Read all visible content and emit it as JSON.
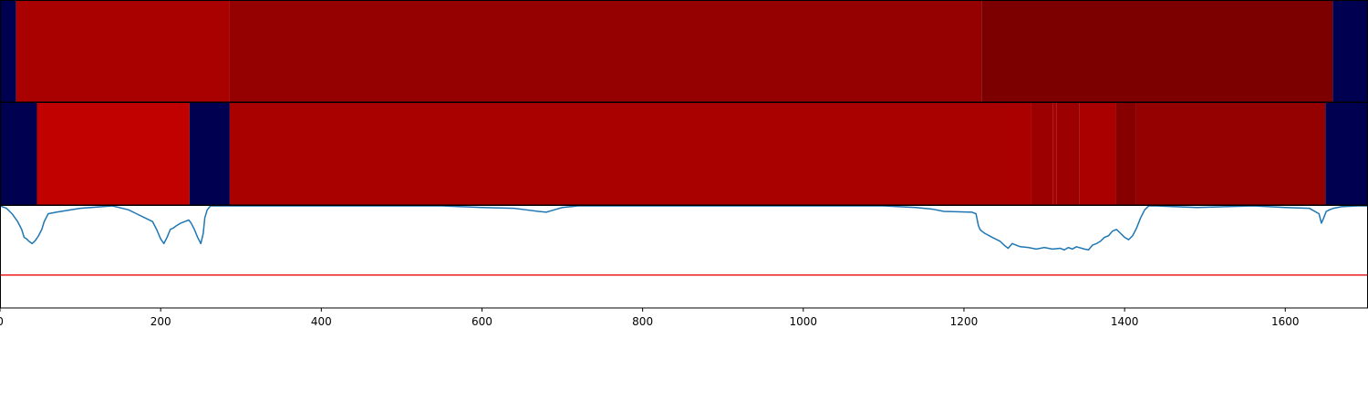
{
  "chart_data": [
    {
      "type": "heatmap",
      "panel": "top-band",
      "segments": [
        {
          "start": 0,
          "end": 20,
          "color": "#000050"
        },
        {
          "start": 20,
          "end": 286,
          "color": "#a90000"
        },
        {
          "start": 286,
          "end": 1222,
          "color": "#950000"
        },
        {
          "start": 1222,
          "end": 1659,
          "color": "#7d0000"
        },
        {
          "start": 1659,
          "end": 1703,
          "color": "#000050"
        }
      ]
    },
    {
      "type": "heatmap",
      "panel": "middle-band",
      "segments": [
        {
          "start": 0,
          "end": 46,
          "color": "#000050"
        },
        {
          "start": 46,
          "end": 236,
          "color": "#c10000"
        },
        {
          "start": 236,
          "end": 286,
          "color": "#000050"
        },
        {
          "start": 286,
          "end": 1250,
          "color": "#a90000"
        },
        {
          "start": 1250,
          "end": 1284,
          "color": "#aa0000"
        },
        {
          "start": 1284,
          "end": 1311,
          "color": "#9c0000"
        },
        {
          "start": 1311,
          "end": 1315,
          "color": "#a90000"
        },
        {
          "start": 1315,
          "end": 1344,
          "color": "#9c0000"
        },
        {
          "start": 1344,
          "end": 1389,
          "color": "#aa0000"
        },
        {
          "start": 1389,
          "end": 1414,
          "color": "#870000"
        },
        {
          "start": 1414,
          "end": 1650,
          "color": "#950000"
        },
        {
          "start": 1650,
          "end": 1703,
          "color": "#000050"
        }
      ]
    },
    {
      "type": "line",
      "panel": "bottom-line",
      "xlim": [
        0,
        1703
      ],
      "ylim": [
        -0.3,
        1.0
      ],
      "xticks": [
        0,
        200,
        400,
        600,
        800,
        1000,
        1200,
        1400,
        1600
      ],
      "xticklabels": [
        "0",
        "200",
        "400",
        "600",
        "800",
        "1000",
        "1200",
        "1400",
        "1600"
      ],
      "threshold": {
        "y": 0.12,
        "color": "#ee1c1c"
      },
      "series": [
        {
          "color": "#1f77b4",
          "x": [
            0,
            8,
            15,
            22,
            27,
            30,
            33,
            36,
            40,
            44,
            48,
            52,
            55,
            60,
            70,
            100,
            140,
            160,
            170,
            180,
            190,
            195,
            200,
            204,
            208,
            212,
            216,
            220,
            225,
            230,
            235,
            238,
            242,
            246,
            250,
            253,
            255,
            258,
            262,
            270,
            290,
            400,
            550,
            600,
            640,
            655,
            670,
            680,
            690,
            700,
            720,
            900,
            1100,
            1140,
            1160,
            1175,
            1210,
            1215,
            1218,
            1220,
            1222,
            1226,
            1235,
            1245,
            1250,
            1255,
            1260,
            1270,
            1280,
            1290,
            1300,
            1310,
            1320,
            1325,
            1330,
            1335,
            1340,
            1350,
            1355,
            1360,
            1365,
            1370,
            1375,
            1380,
            1385,
            1390,
            1395,
            1400,
            1405,
            1410,
            1415,
            1420,
            1425,
            1430,
            1440,
            1490,
            1560,
            1600,
            1630,
            1642,
            1645,
            1648,
            1651,
            1655,
            1660,
            1670,
            1690,
            1703
          ],
          "y": [
            1.0,
            0.97,
            0.9,
            0.8,
            0.7,
            0.6,
            0.58,
            0.55,
            0.52,
            0.56,
            0.62,
            0.7,
            0.8,
            0.9,
            0.92,
            0.97,
            1.0,
            0.95,
            0.9,
            0.85,
            0.8,
            0.7,
            0.58,
            0.52,
            0.6,
            0.7,
            0.72,
            0.75,
            0.78,
            0.8,
            0.82,
            0.78,
            0.7,
            0.6,
            0.52,
            0.65,
            0.85,
            0.95,
            1.0,
            1.0,
            1.0,
            1.0,
            1.0,
            0.98,
            0.97,
            0.95,
            0.93,
            0.92,
            0.95,
            0.98,
            1.0,
            1.0,
            1.0,
            0.98,
            0.96,
            0.93,
            0.92,
            0.9,
            0.75,
            0.7,
            0.68,
            0.65,
            0.6,
            0.55,
            0.5,
            0.46,
            0.52,
            0.48,
            0.47,
            0.45,
            0.47,
            0.45,
            0.46,
            0.44,
            0.47,
            0.45,
            0.48,
            0.45,
            0.44,
            0.5,
            0.52,
            0.55,
            0.6,
            0.62,
            0.68,
            0.7,
            0.65,
            0.6,
            0.57,
            0.62,
            0.72,
            0.85,
            0.95,
            1.0,
            1.0,
            0.98,
            1.0,
            0.98,
            0.97,
            0.9,
            0.78,
            0.85,
            0.93,
            0.95,
            0.97,
            0.99,
            1.0,
            1.0
          ]
        }
      ]
    }
  ]
}
